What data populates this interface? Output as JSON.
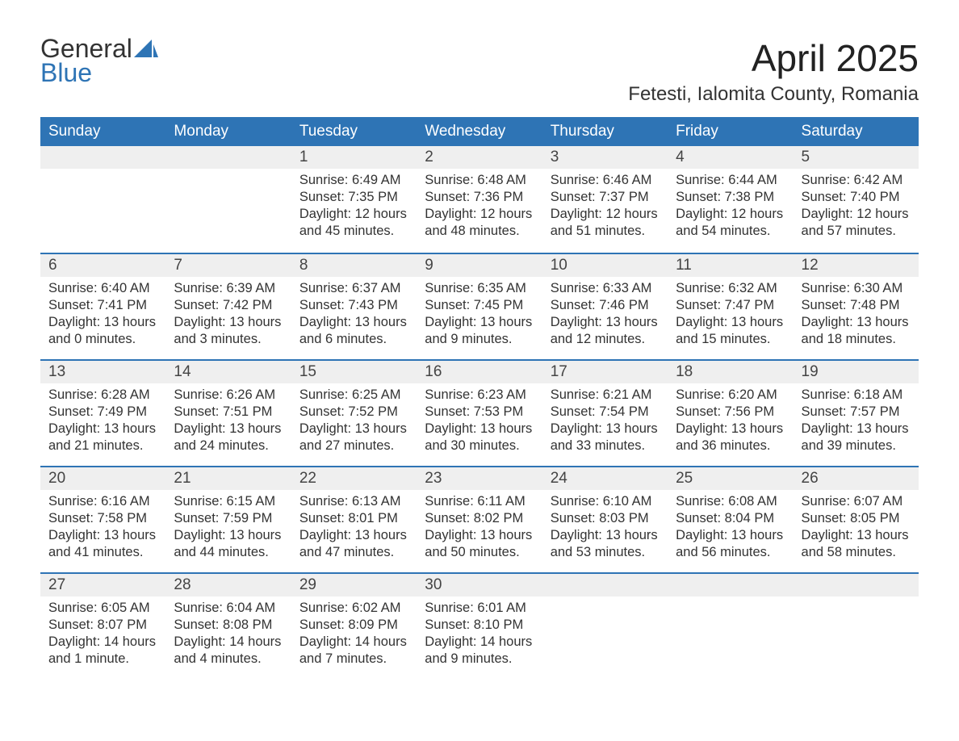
{
  "brand": {
    "word1": "General",
    "word2": "Blue"
  },
  "title": "April 2025",
  "location": "Fetesti, Ialomita County, Romania",
  "colors": {
    "accent": "#2e74b5",
    "header_bg": "#2e74b5",
    "header_text": "#ffffff",
    "daynum_bg": "#efefef",
    "body_text": "#333333"
  },
  "layout": {
    "columns": 7,
    "rows": 5,
    "first_day_column_index": 2
  },
  "labels": {
    "sunrise": "Sunrise:",
    "sunset": "Sunset:",
    "daylight": "Daylight:"
  },
  "weekdays": [
    "Sunday",
    "Monday",
    "Tuesday",
    "Wednesday",
    "Thursday",
    "Friday",
    "Saturday"
  ],
  "days": [
    {
      "n": 1,
      "sunrise": "6:49 AM",
      "sunset": "7:35 PM",
      "daylight": "12 hours and 45 minutes."
    },
    {
      "n": 2,
      "sunrise": "6:48 AM",
      "sunset": "7:36 PM",
      "daylight": "12 hours and 48 minutes."
    },
    {
      "n": 3,
      "sunrise": "6:46 AM",
      "sunset": "7:37 PM",
      "daylight": "12 hours and 51 minutes."
    },
    {
      "n": 4,
      "sunrise": "6:44 AM",
      "sunset": "7:38 PM",
      "daylight": "12 hours and 54 minutes."
    },
    {
      "n": 5,
      "sunrise": "6:42 AM",
      "sunset": "7:40 PM",
      "daylight": "12 hours and 57 minutes."
    },
    {
      "n": 6,
      "sunrise": "6:40 AM",
      "sunset": "7:41 PM",
      "daylight": "13 hours and 0 minutes."
    },
    {
      "n": 7,
      "sunrise": "6:39 AM",
      "sunset": "7:42 PM",
      "daylight": "13 hours and 3 minutes."
    },
    {
      "n": 8,
      "sunrise": "6:37 AM",
      "sunset": "7:43 PM",
      "daylight": "13 hours and 6 minutes."
    },
    {
      "n": 9,
      "sunrise": "6:35 AM",
      "sunset": "7:45 PM",
      "daylight": "13 hours and 9 minutes."
    },
    {
      "n": 10,
      "sunrise": "6:33 AM",
      "sunset": "7:46 PM",
      "daylight": "13 hours and 12 minutes."
    },
    {
      "n": 11,
      "sunrise": "6:32 AM",
      "sunset": "7:47 PM",
      "daylight": "13 hours and 15 minutes."
    },
    {
      "n": 12,
      "sunrise": "6:30 AM",
      "sunset": "7:48 PM",
      "daylight": "13 hours and 18 minutes."
    },
    {
      "n": 13,
      "sunrise": "6:28 AM",
      "sunset": "7:49 PM",
      "daylight": "13 hours and 21 minutes."
    },
    {
      "n": 14,
      "sunrise": "6:26 AM",
      "sunset": "7:51 PM",
      "daylight": "13 hours and 24 minutes."
    },
    {
      "n": 15,
      "sunrise": "6:25 AM",
      "sunset": "7:52 PM",
      "daylight": "13 hours and 27 minutes."
    },
    {
      "n": 16,
      "sunrise": "6:23 AM",
      "sunset": "7:53 PM",
      "daylight": "13 hours and 30 minutes."
    },
    {
      "n": 17,
      "sunrise": "6:21 AM",
      "sunset": "7:54 PM",
      "daylight": "13 hours and 33 minutes."
    },
    {
      "n": 18,
      "sunrise": "6:20 AM",
      "sunset": "7:56 PM",
      "daylight": "13 hours and 36 minutes."
    },
    {
      "n": 19,
      "sunrise": "6:18 AM",
      "sunset": "7:57 PM",
      "daylight": "13 hours and 39 minutes."
    },
    {
      "n": 20,
      "sunrise": "6:16 AM",
      "sunset": "7:58 PM",
      "daylight": "13 hours and 41 minutes."
    },
    {
      "n": 21,
      "sunrise": "6:15 AM",
      "sunset": "7:59 PM",
      "daylight": "13 hours and 44 minutes."
    },
    {
      "n": 22,
      "sunrise": "6:13 AM",
      "sunset": "8:01 PM",
      "daylight": "13 hours and 47 minutes."
    },
    {
      "n": 23,
      "sunrise": "6:11 AM",
      "sunset": "8:02 PM",
      "daylight": "13 hours and 50 minutes."
    },
    {
      "n": 24,
      "sunrise": "6:10 AM",
      "sunset": "8:03 PM",
      "daylight": "13 hours and 53 minutes."
    },
    {
      "n": 25,
      "sunrise": "6:08 AM",
      "sunset": "8:04 PM",
      "daylight": "13 hours and 56 minutes."
    },
    {
      "n": 26,
      "sunrise": "6:07 AM",
      "sunset": "8:05 PM",
      "daylight": "13 hours and 58 minutes."
    },
    {
      "n": 27,
      "sunrise": "6:05 AM",
      "sunset": "8:07 PM",
      "daylight": "14 hours and 1 minute."
    },
    {
      "n": 28,
      "sunrise": "6:04 AM",
      "sunset": "8:08 PM",
      "daylight": "14 hours and 4 minutes."
    },
    {
      "n": 29,
      "sunrise": "6:02 AM",
      "sunset": "8:09 PM",
      "daylight": "14 hours and 7 minutes."
    },
    {
      "n": 30,
      "sunrise": "6:01 AM",
      "sunset": "8:10 PM",
      "daylight": "14 hours and 9 minutes."
    }
  ]
}
